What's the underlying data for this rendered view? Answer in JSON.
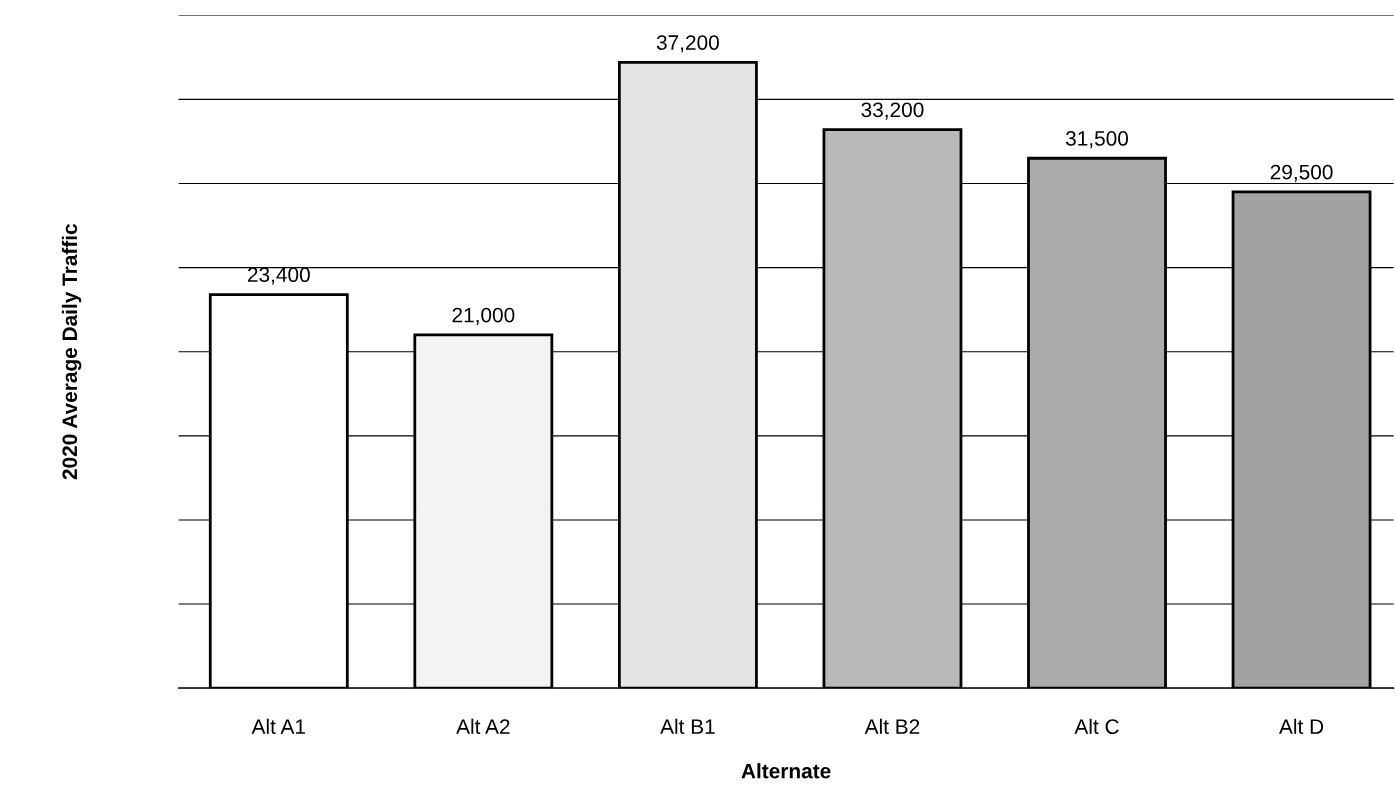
{
  "chart_data": {
    "type": "bar",
    "xlabel": "Alternate",
    "ylabel": "2020 Average Daily Traffic",
    "categories": [
      "Alt A1",
      "Alt A2",
      "Alt B1",
      "Alt B2",
      "Alt C",
      "Alt D"
    ],
    "values": [
      23400,
      21000,
      37200,
      33200,
      31500,
      29500
    ],
    "colors": [
      "#ffffff",
      "#f3f3f3",
      "#e4e4e4",
      "#b9b9b9",
      "#ababab",
      "#a2a2a2"
    ],
    "value_labels": [
      "23,400",
      "21,000",
      "37,200",
      "33,200",
      "31,500",
      "29,500"
    ],
    "ylim": [
      0,
      40000
    ],
    "yticks": [
      {
        "value": 0,
        "label": null
      },
      {
        "value": 5000,
        "label": null
      },
      {
        "value": 10000,
        "label": null
      },
      {
        "value": 15000,
        "label": null
      },
      {
        "value": 20000,
        "label": null
      },
      {
        "value": 25000,
        "label": null
      },
      {
        "value": 30000,
        "label": null
      },
      {
        "value": 35000,
        "label": null
      },
      {
        "value": 40000,
        "label": null
      }
    ],
    "tick_labels": "x",
    "grid": "y"
  }
}
